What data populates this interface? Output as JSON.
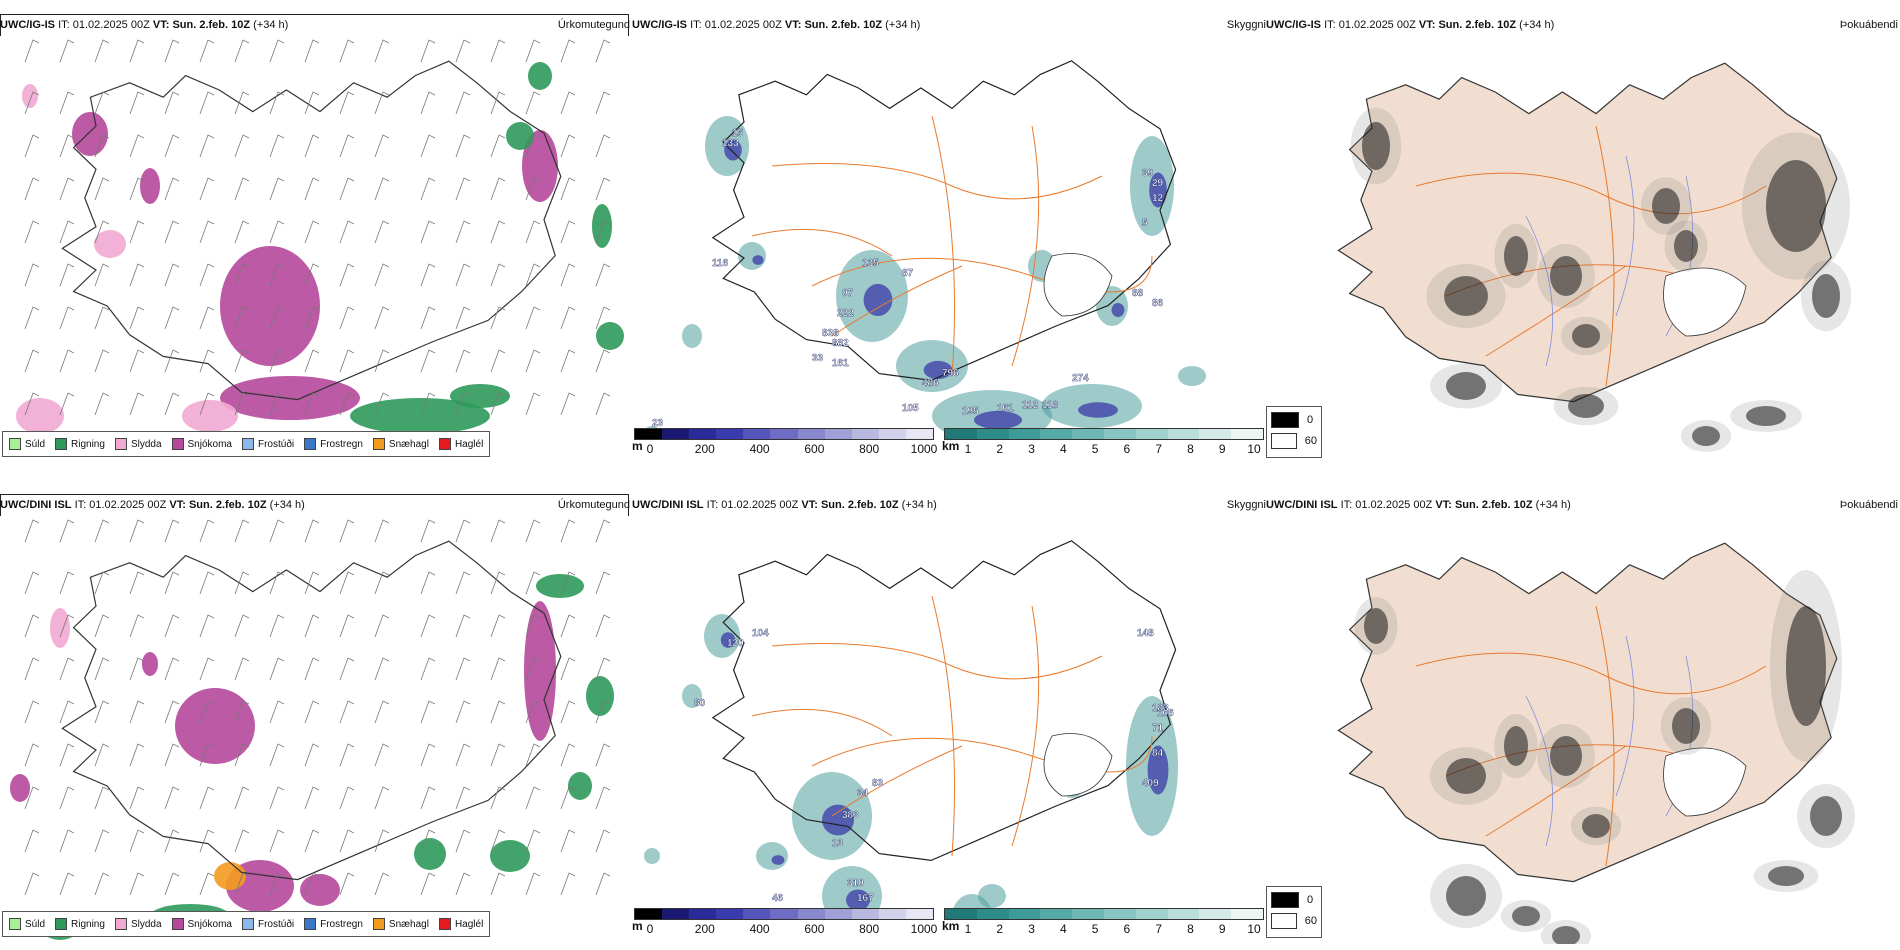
{
  "forecast_info": {
    "it_label": "IT:",
    "it_value": "01.02.2025 00Z",
    "vt_label": "VT:",
    "vt_value": "Sun. 2.feb. 10Z",
    "lead": "(+34 h)"
  },
  "rows": [
    {
      "model": "UWC/IG-IS",
      "ceiling_labels": [
        "133",
        "15",
        "116",
        "135",
        "87",
        "07",
        "222",
        "838",
        "882",
        "33",
        "161",
        "796",
        "486",
        "105",
        "195",
        "161",
        "112",
        "118",
        "274",
        "39",
        "29",
        "12",
        "5",
        "88",
        "86",
        "23"
      ]
    },
    {
      "model": "UWC/DINI ISL",
      "ceiling_labels": [
        "120",
        "104",
        "80",
        "34",
        "83",
        "383",
        "13",
        "148",
        "106",
        "183",
        "71",
        "84",
        "409",
        "310",
        "167",
        "66",
        "270",
        "180",
        "46"
      ]
    }
  ],
  "panel_titles": {
    "precip_type": "Úrkomutegund",
    "ceiling": "Skyggni",
    "visibility": "Þokuábendi"
  },
  "precip_legend": [
    {
      "label": "Súld",
      "color": "#a8ee96"
    },
    {
      "label": "Rigning",
      "color": "#2e9a5a"
    },
    {
      "label": "Slydda",
      "color": "#f1a8d2"
    },
    {
      "label": "Snjókoma",
      "color": "#b5489b"
    },
    {
      "label": "Frostúði",
      "color": "#8db8ea"
    },
    {
      "label": "Frostregn",
      "color": "#3a78c8"
    },
    {
      "label": "Snæhagl",
      "color": "#f39b1f"
    },
    {
      "label": "Haglél",
      "color": "#e41a1c"
    }
  ],
  "ceiling_scale": {
    "unit": "m",
    "ticks": [
      "0",
      "200",
      "400",
      "600",
      "800",
      "1000"
    ],
    "colors": [
      "#000000",
      "#1a1a72",
      "#2a2a9a",
      "#3b3bb0",
      "#5555bb",
      "#6d6dc4",
      "#8888cc",
      "#a0a0d6",
      "#b9b9e0",
      "#d2d2ea",
      "#e6e6f4"
    ]
  },
  "visibility_scale": {
    "unit": "km",
    "ticks": [
      "1",
      "2",
      "3",
      "4",
      "5",
      "6",
      "7",
      "8",
      "9",
      "10"
    ],
    "colors": [
      "#1f7a78",
      "#2e8d8a",
      "#3f9b98",
      "#55aaa6",
      "#6db8b4",
      "#86c5c2",
      "#a0d2cf",
      "#badedc",
      "#d3eae8",
      "#edf6f5"
    ]
  },
  "fog_legend": {
    "low_value": "0",
    "high_value": "60",
    "low_color": "#000000",
    "high_color": "#ffffff"
  },
  "colors": {
    "land_fill": "#f1ded0",
    "road": "#e87a2e",
    "river": "#7f8fe0",
    "coast": "#222222"
  }
}
